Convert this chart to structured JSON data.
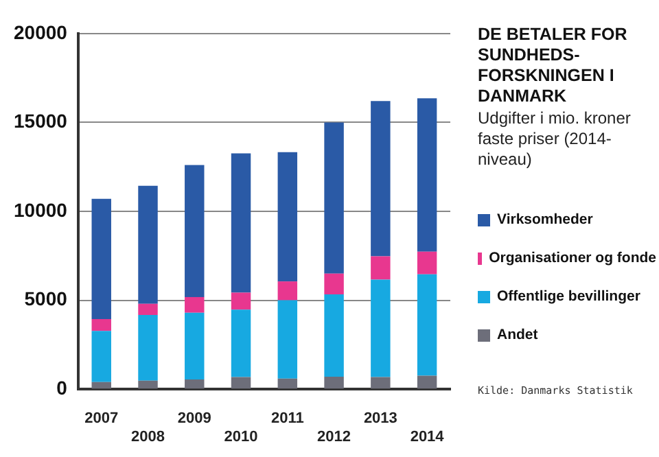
{
  "chart_data": {
    "type": "bar",
    "stacked": true,
    "title": "DE BETALER FOR SUNDHEDS-FORSKNINGEN I DANMARK",
    "subtitle": "Udgifter i mio. kroner faste priser (2014-niveau)",
    "annotations": [
      "Kilde: Danmarks Statistik"
    ],
    "categories": [
      "2007",
      "2008",
      "2009",
      "2010",
      "2011",
      "2012",
      "2013",
      "2014"
    ],
    "series": [
      {
        "name": "Andet",
        "color": "#6d6e7a",
        "values": [
          400,
          480,
          550,
          680,
          600,
          700,
          680,
          760
        ]
      },
      {
        "name": "Offentlige bevillinger",
        "color": "#17a9e1",
        "values": [
          2880,
          3690,
          3750,
          3790,
          4400,
          4630,
          5480,
          5700
        ]
      },
      {
        "name": "Organisationer og fonde",
        "color": "#e8378f",
        "values": [
          660,
          630,
          880,
          960,
          1060,
          1170,
          1310,
          1270
        ]
      },
      {
        "name": "Virksomheder",
        "color": "#2a5aa6",
        "values": [
          6760,
          6640,
          7420,
          7830,
          7270,
          8500,
          8730,
          8630
        ]
      }
    ],
    "ylim": [
      0,
      20000
    ],
    "yticks": [
      0,
      5000,
      10000,
      15000,
      20000
    ],
    "grid": "y",
    "legend": "right"
  }
}
